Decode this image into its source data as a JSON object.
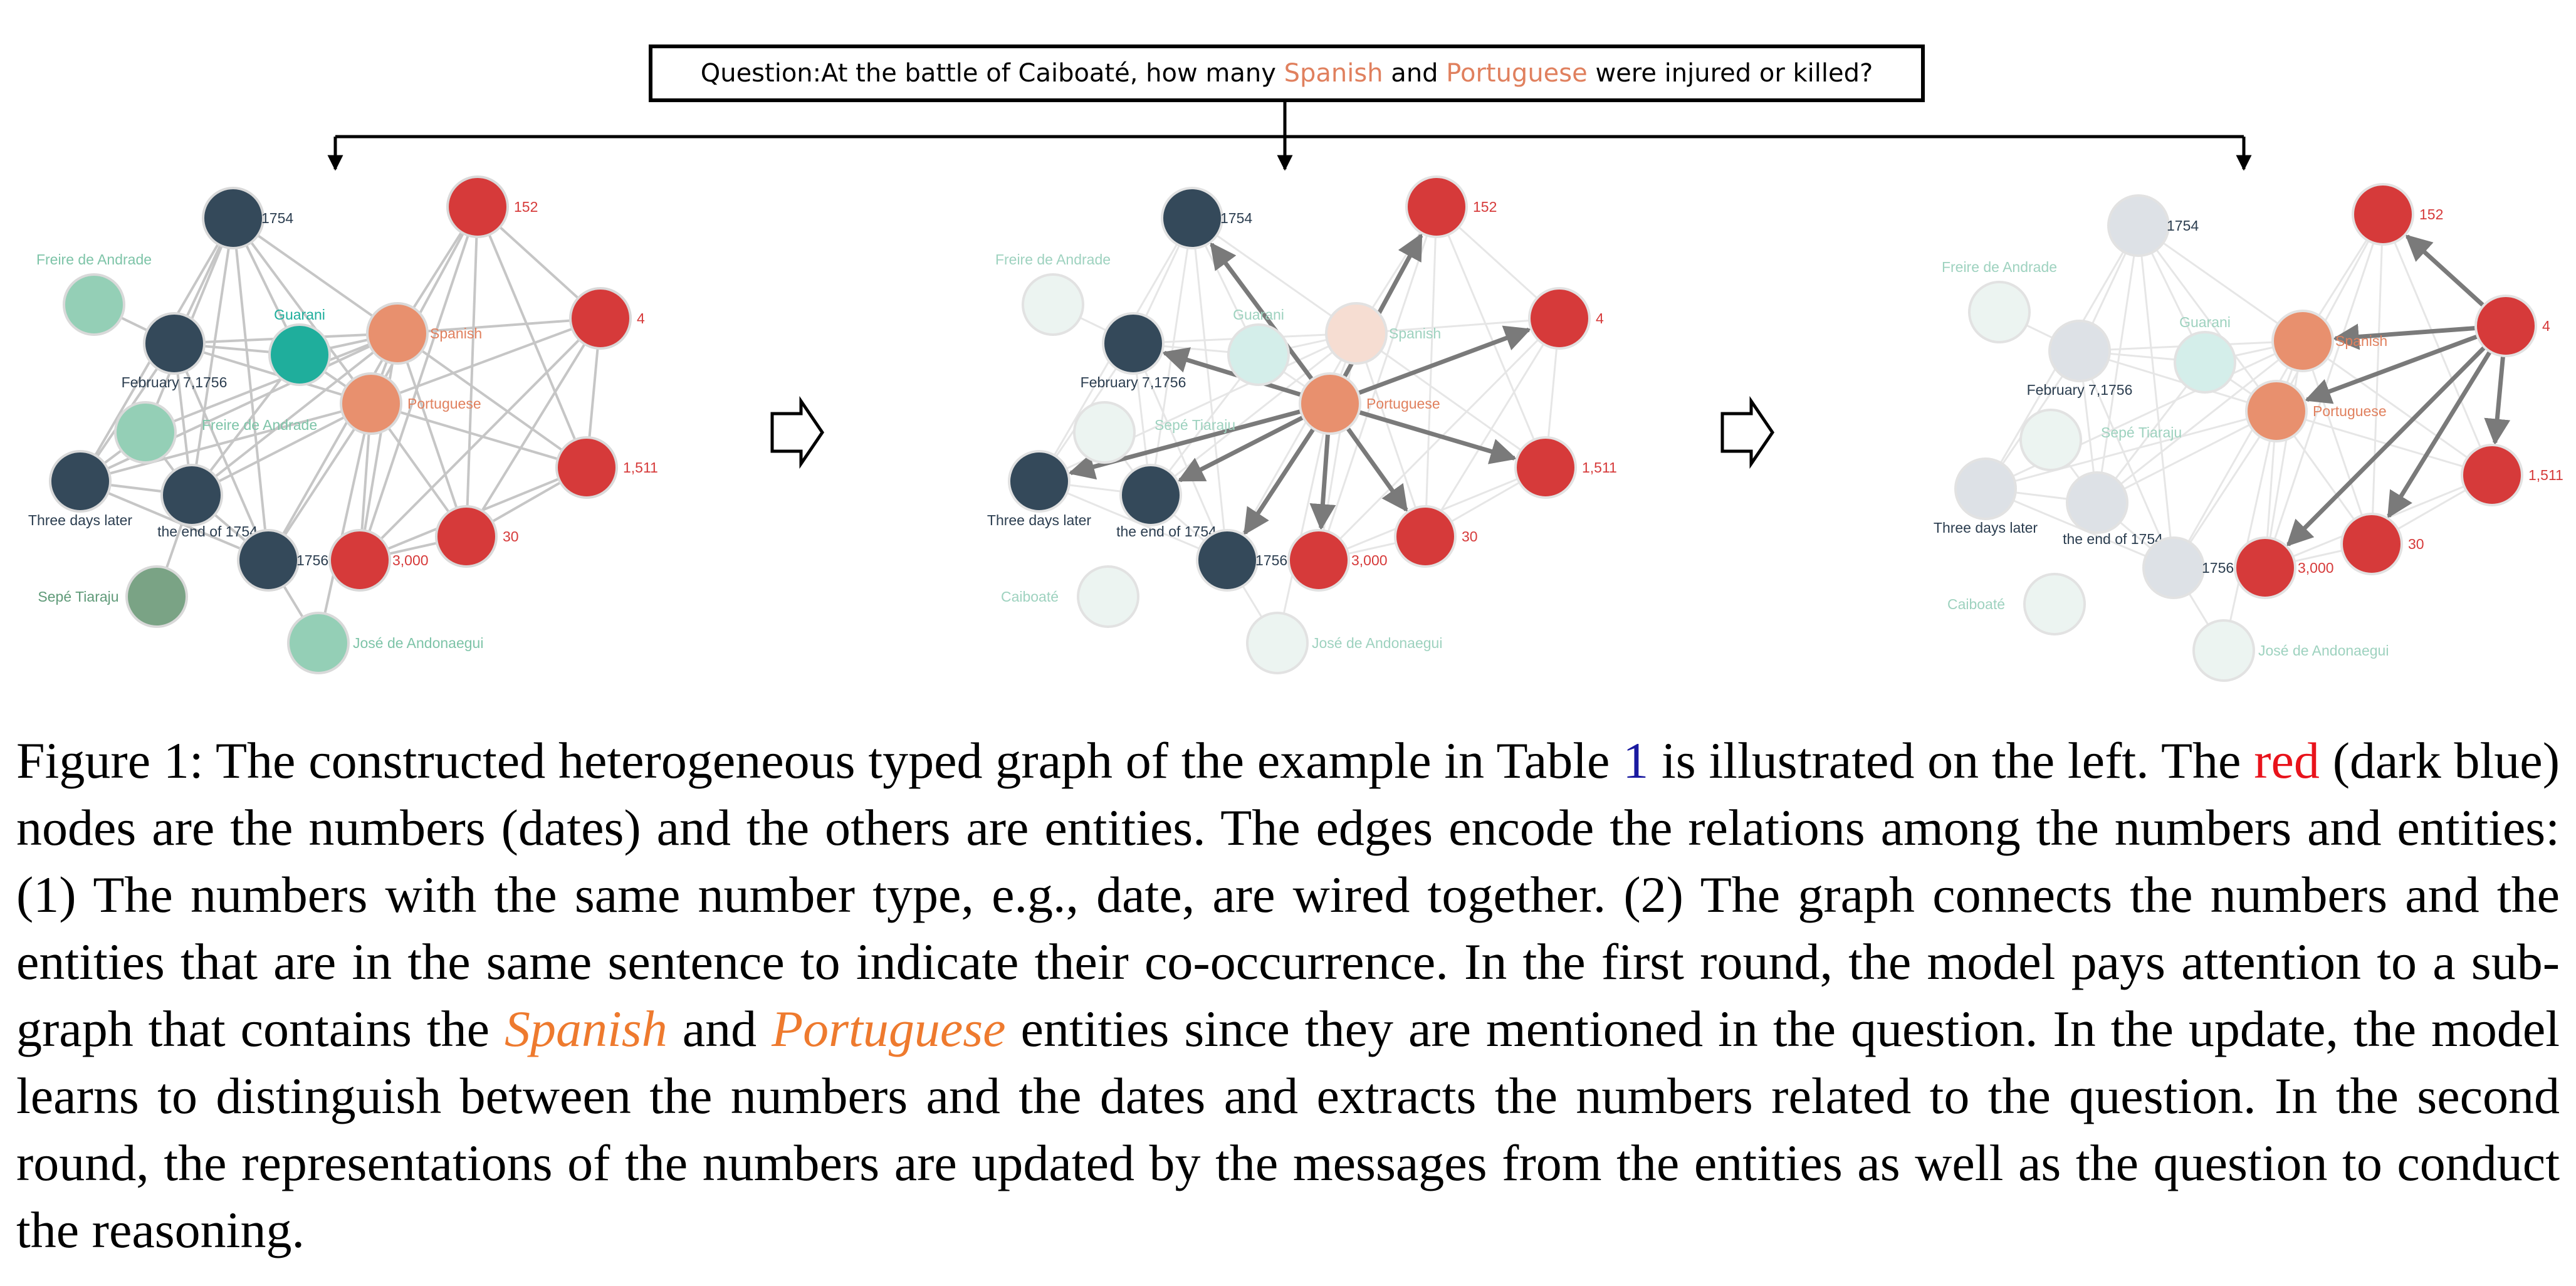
{
  "question": {
    "prefix": "Question:At the battle of Caiboaté, how many ",
    "entity1": "Spanish",
    "middle": " and ",
    "entity2": "Portuguese",
    "suffix": " were injured or killed?"
  },
  "node_labels": {
    "d1754": "1754",
    "dFeb": "February 7,1756",
    "dThree": "Three days later",
    "dEnd": "the end of 1754",
    "d1756": "1756",
    "eFreire1": "Freire de Andrade",
    "eFreire2": "Freire de Andrade",
    "eGuarani": "Guarani",
    "eSepe": "Sepé Tiaraju",
    "eJose": "José de Andonaegui",
    "eCaiboate": "Caiboaté",
    "eSpanish": "Spanish",
    "ePortuguese": "Portuguese",
    "n152": "152",
    "n4": "4",
    "n1511": "1,511",
    "n30": "30",
    "n3000": "3,000"
  },
  "colors": {
    "number": "#d63a3a",
    "date": "#34495a",
    "entity": "#94cfb6",
    "guarani": "#1fae9c",
    "sepe": "#7aa385",
    "question_entity": "#e8906e",
    "caption_red": "#e8131b",
    "caption_orange": "#ee7a2e",
    "caption_ref": "#1a1aa0"
  },
  "caption": {
    "s1": "Figure 1: The constructed heterogeneous typed graph of the example in Table ",
    "ref": "1",
    "s2": " is illustrated on the left. The ",
    "red": "red",
    "s3": " (dark blue) nodes are the numbers (dates) and the others are entities. The edges encode the relations among the numbers and entities: (1) The numbers with the same number type, e.g., date, are wired together. (2) The graph connects the numbers and the entities that are in the same sentence to indicate their co-occurrence. In the first round, the model pays attention to a sub-graph that contains the ",
    "spanish": "Spanish",
    "s4": " and ",
    "portuguese": "Portuguese",
    "s5": " entities since they are mentioned in the question. In the update, the model learns to distinguish between the numbers and the dates and extracts the numbers related to the question. In the second round, the representations of the numbers are updated by the messages from the entities as well as the question to conduct the reasoning."
  }
}
